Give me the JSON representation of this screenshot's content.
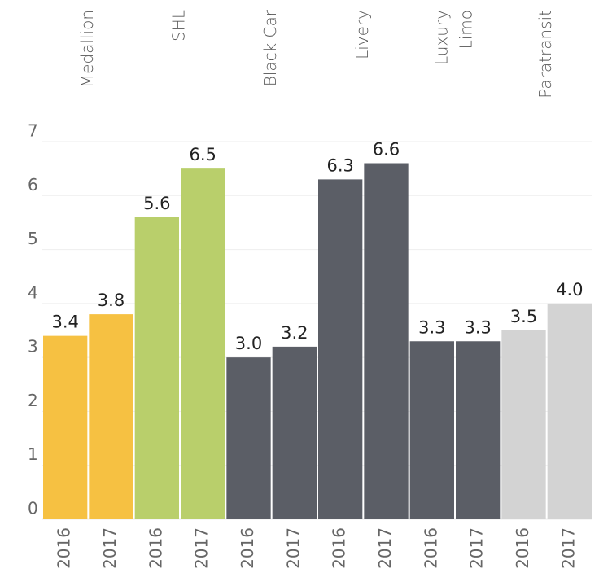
{
  "chart_data": {
    "type": "bar",
    "groups": [
      {
        "name": [
          "Medallion"
        ],
        "color": "#f6c142",
        "categories": [
          "2016",
          "2017"
        ],
        "values": [
          3.4,
          3.8
        ],
        "value_labels": [
          "3.4",
          "3.8"
        ]
      },
      {
        "name": [
          "SHL"
        ],
        "color": "#b9cf6b",
        "categories": [
          "2016",
          "2017"
        ],
        "values": [
          5.6,
          6.5
        ],
        "value_labels": [
          "5.6",
          "6.5"
        ]
      },
      {
        "name": [
          "Black Car"
        ],
        "color": "#5b5e66",
        "categories": [
          "2016",
          "2017"
        ],
        "values": [
          3.0,
          3.2
        ],
        "value_labels": [
          "3.0",
          "3.2"
        ]
      },
      {
        "name": [
          "Livery"
        ],
        "color": "#5b5e66",
        "categories": [
          "2016",
          "2017"
        ],
        "values": [
          6.3,
          6.6
        ],
        "value_labels": [
          "6.3",
          "6.6"
        ]
      },
      {
        "name": [
          "Luxury",
          "Limo"
        ],
        "color": "#5b5e66",
        "categories": [
          "2016",
          "2017"
        ],
        "values": [
          3.3,
          3.3
        ],
        "value_labels": [
          "3.3",
          "3.3"
        ]
      },
      {
        "name": [
          "Paratransit"
        ],
        "color": "#d3d3d3",
        "categories": [
          "2016",
          "2017"
        ],
        "values": [
          3.5,
          4.0
        ],
        "value_labels": [
          "3.5",
          "4.0"
        ]
      }
    ],
    "ylim": [
      0,
      7
    ],
    "yticks": [
      0,
      1,
      2,
      3,
      4,
      5,
      6,
      7
    ],
    "grid": true
  }
}
